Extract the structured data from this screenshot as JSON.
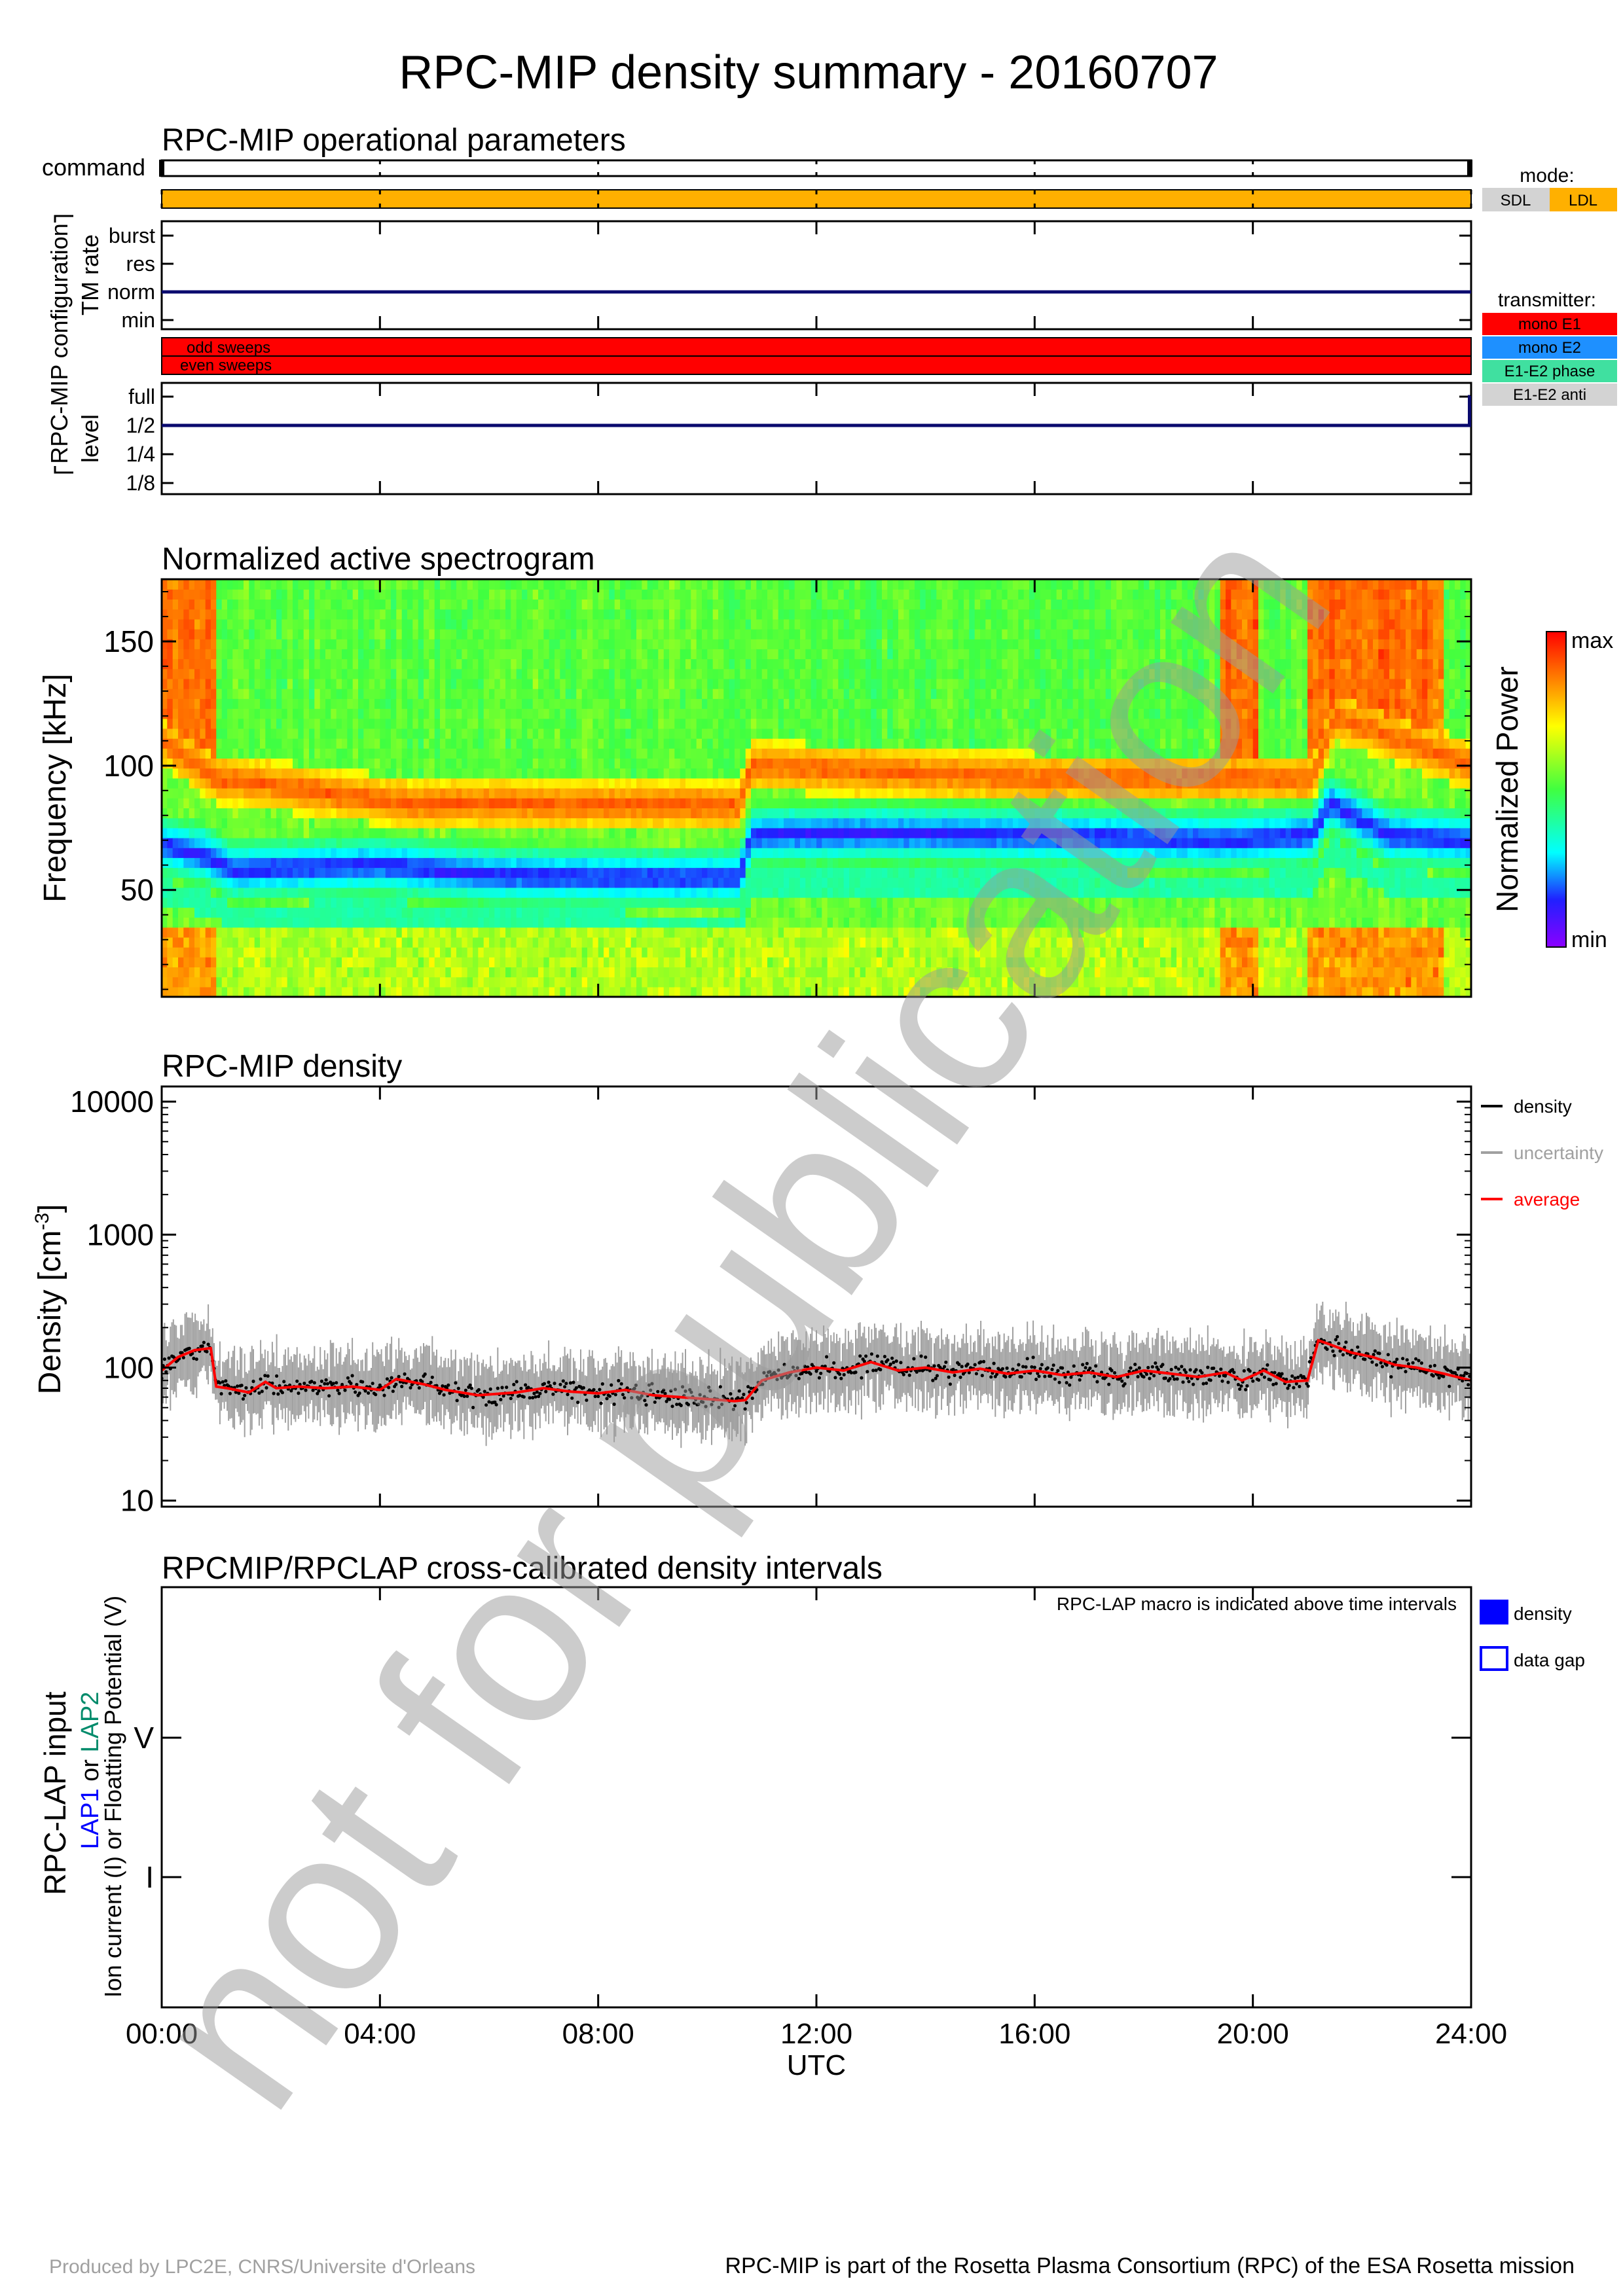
{
  "page": {
    "title": "RPC-MIP density summary - 20160707",
    "watermark": "not for publication",
    "footer_left": "Produced by LPC2E, CNRS/Universite d'Orleans",
    "footer_right": "RPC-MIP is part of the Rosetta Plasma Consortium (RPC) of the ESA Rosetta mission"
  },
  "time_axis": {
    "ticks": [
      "00:00",
      "04:00",
      "08:00",
      "12:00",
      "16:00",
      "20:00",
      "24:00"
    ],
    "label": "UTC",
    "range_hours": [
      0,
      24
    ]
  },
  "operational": {
    "title": "RPC-MIP operational parameters",
    "command_label": "command",
    "configuration_label": "RPC-MIP configuration",
    "tm_rate_label": "TM rate",
    "tm_rate_levels": [
      "burst",
      "res",
      "norm",
      "min"
    ],
    "level_label": "level",
    "level_levels": [
      "full",
      "1/2",
      "1/4",
      "1/8"
    ],
    "odd_sweeps_label": "odd sweeps",
    "even_sweeps_label": "even sweeps",
    "mode_title": "mode:",
    "modes": [
      {
        "label": "SDL",
        "color": "#d3d3d3"
      },
      {
        "label": "LDL",
        "color": "#ffb000"
      }
    ],
    "transmitter_title": "transmitter:",
    "transmitters": [
      {
        "label": "mono E1",
        "color": "#ff0000"
      },
      {
        "label": "mono E2",
        "color": "#1e90ff"
      },
      {
        "label": "E1-E2 phase",
        "color": "#40e0a0"
      },
      {
        "label": "E1-E2 anti",
        "color": "#d3d3d3"
      }
    ],
    "mode_bar_color": "#ffb000",
    "sweep_bar_color": "#ff0000",
    "tm_rate_state": "norm",
    "level_state": "1/2",
    "level_step_to": "full",
    "level_step_at_hour": 23.97
  },
  "spectrogram": {
    "title": "Normalized active spectrogram",
    "ylabel": "Frequency [kHz]",
    "yticks": [
      "50",
      "100",
      "150"
    ],
    "ylim": [
      7,
      175
    ],
    "colorbar_label": "Normalized Power",
    "colorbar_max": "max",
    "colorbar_min": "min"
  },
  "density": {
    "title": "RPC-MIP density",
    "ylabel": "Density [cm",
    "ylabel_exp": "-3",
    "ylabel_close": "]",
    "yticks": [
      "10",
      "100",
      "1000",
      "10000"
    ],
    "legend": [
      {
        "label": "density",
        "color": "#000000"
      },
      {
        "label": "uncertainty",
        "color": "#a0a0a0"
      },
      {
        "label": "average",
        "color": "#ff0000"
      }
    ]
  },
  "lap": {
    "title": "RPCMIP/RPCLAP cross-calibrated density intervals",
    "note": "RPC-LAP macro is indicated above time intervals",
    "ylabel_main": "RPC-LAP input",
    "ylabel_lap1": "LAP1",
    "ylabel_or": " or ",
    "ylabel_lap2": "LAP2",
    "ylabel_sub": "Ion current (I) or Floatting Potential (V)",
    "yticks": [
      "V",
      "I"
    ],
    "legend": [
      {
        "label": "density",
        "color": "#0000ff",
        "filled": true
      },
      {
        "label": "data gap",
        "color": "#0000ff",
        "filled": false
      }
    ]
  },
  "chart_data": [
    {
      "type": "heatmap",
      "title": "Normalized active spectrogram",
      "xlabel": "",
      "ylabel": "Frequency [kHz]",
      "xlim_hours": [
        0,
        24
      ],
      "ylim": [
        7,
        175
      ],
      "description_of_values": "normalized power, min to max",
      "minimum_band_center_khz": [
        {
          "hour": 0.0,
          "khz": 68
        },
        {
          "hour": 0.8,
          "khz": 64
        },
        {
          "hour": 1.3,
          "khz": 58
        },
        {
          "hour": 4.0,
          "khz": 60
        },
        {
          "hour": 6.0,
          "khz": 56
        },
        {
          "hour": 8.5,
          "khz": 55
        },
        {
          "hour": 10.6,
          "khz": 55
        },
        {
          "hour": 10.8,
          "khz": 72
        },
        {
          "hour": 13.0,
          "khz": 73
        },
        {
          "hour": 16.0,
          "khz": 72
        },
        {
          "hour": 19.5,
          "khz": 70
        },
        {
          "hour": 21.1,
          "khz": 72
        },
        {
          "hour": 21.4,
          "khz": 85
        },
        {
          "hour": 22.5,
          "khz": 72
        },
        {
          "hour": 24.0,
          "khz": 70
        }
      ],
      "high_power_band_center_khz": [
        {
          "hour": 0.0,
          "khz": 110
        },
        {
          "hour": 1.0,
          "khz": 95
        },
        {
          "hour": 4.5,
          "khz": 85
        },
        {
          "hour": 10.6,
          "khz": 84
        },
        {
          "hour": 10.8,
          "khz": 100
        },
        {
          "hour": 16.0,
          "khz": 95
        },
        {
          "hour": 21.1,
          "khz": 95
        },
        {
          "hour": 21.5,
          "khz": 120
        },
        {
          "hour": 24.0,
          "khz": 100
        }
      ],
      "broadband_red_hours": [
        [
          0.0,
          1.0
        ],
        [
          19.4,
          20.1
        ],
        [
          21.0,
          23.5
        ]
      ]
    },
    {
      "type": "line",
      "title": "RPC-MIP density",
      "xlabel": "UTC",
      "ylabel": "Density [cm-3]",
      "yscale": "log",
      "ylim": [
        9,
        13000
      ],
      "xlim_hours": [
        0,
        24
      ],
      "series": [
        {
          "name": "average",
          "x_hours": [
            0.0,
            0.3,
            0.6,
            0.9,
            1.0,
            1.2,
            1.6,
            1.9,
            2.1,
            2.5,
            3.0,
            3.5,
            4.0,
            4.3,
            4.8,
            5.2,
            5.8,
            6.5,
            7.0,
            7.5,
            8.0,
            8.5,
            9.0,
            9.5,
            10.0,
            10.5,
            10.7,
            11.0,
            11.5,
            12.0,
            12.5,
            13.0,
            13.5,
            14.0,
            14.5,
            15.0,
            15.5,
            16.0,
            16.5,
            17.0,
            17.5,
            18.0,
            18.5,
            19.0,
            19.5,
            19.8,
            20.2,
            20.6,
            21.0,
            21.2,
            21.4,
            21.8,
            22.2,
            22.6,
            23.0,
            23.5,
            24.0
          ],
          "values": [
            95,
            120,
            135,
            140,
            72,
            70,
            65,
            78,
            70,
            72,
            70,
            72,
            68,
            82,
            75,
            68,
            62,
            65,
            70,
            66,
            64,
            68,
            62,
            60,
            58,
            56,
            57,
            80,
            92,
            100,
            95,
            110,
            95,
            100,
            92,
            98,
            90,
            95,
            88,
            92,
            85,
            95,
            90,
            85,
            92,
            80,
            95,
            78,
            80,
            160,
            150,
            130,
            120,
            105,
            100,
            90,
            80
          ]
        }
      ]
    },
    {
      "type": "table",
      "title": "RPCMIP/RPCLAP cross-calibrated density intervals",
      "categories": [
        "V",
        "I"
      ],
      "intervals": []
    }
  ]
}
